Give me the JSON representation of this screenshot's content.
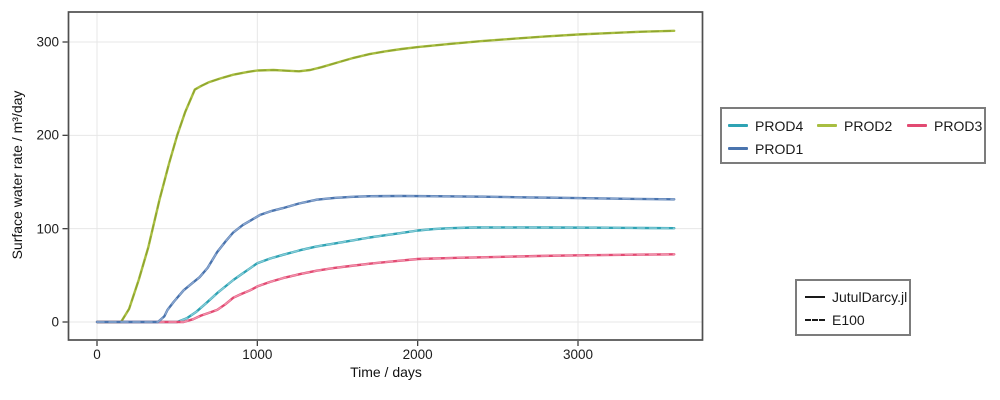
{
  "figure": {
    "background": "#ffffff"
  },
  "chart_data": {
    "type": "line",
    "title": "",
    "xlabel": "Time / days",
    "ylabel": "Surface water rate / m³/day",
    "xlim": [
      -175,
      3780
    ],
    "ylim": [
      -19,
      332
    ],
    "xticks": [
      0,
      1000,
      2000,
      3000
    ],
    "xticklabels": [
      "0",
      "1000",
      "2000",
      "3000"
    ],
    "yticks": [
      0,
      100,
      200,
      300
    ],
    "yticklabels": [
      "0",
      "100",
      "200",
      "300"
    ],
    "grid": true,
    "grid_color": "#e7e7e7",
    "frame_color": "#4f4f4f",
    "legend_series_position": "outside-right-top",
    "legend_linestyle_position": "outside-right-bottom",
    "series": [
      {
        "name": "PROD4",
        "color": "#2EA3B4",
        "dash_color": "#85CBD6",
        "x": [
          0,
          250,
          500,
          560,
          620,
          680,
          750,
          800,
          850,
          900,
          950,
          1000,
          1080,
          1160,
          1270,
          1370,
          1480,
          1580,
          1700,
          1800,
          1900,
          2000,
          2100,
          2200,
          2350,
          2500,
          2800,
          3100,
          3400,
          3600
        ],
        "y": [
          0,
          0,
          0,
          4,
          11,
          20,
          31,
          38,
          45,
          51,
          57,
          63,
          68,
          72,
          77,
          81,
          84,
          87,
          90.5,
          93,
          95.5,
          98,
          99.5,
          100.5,
          101.2,
          101.4,
          101.2,
          101,
          100.7,
          100.5
        ]
      },
      {
        "name": "PROD2",
        "color": "#A8BE41",
        "dash_color": "#8FA52E",
        "x": [
          0,
          100,
          150,
          200,
          260,
          320,
          390,
          450,
          500,
          550,
          610,
          650,
          700,
          770,
          850,
          940,
          1000,
          1100,
          1180,
          1260,
          1330,
          1400,
          1500,
          1600,
          1700,
          1800,
          1900,
          2000,
          2200,
          2400,
          2600,
          2800,
          3000,
          3200,
          3400,
          3600
        ],
        "y": [
          0,
          0,
          0,
          14,
          45,
          80,
          131,
          170,
          200,
          225,
          249,
          253,
          257,
          261,
          265,
          268,
          269.5,
          270,
          269.2,
          268.6,
          270,
          273,
          278,
          283,
          287,
          290,
          292.5,
          294.5,
          298,
          301,
          303.5,
          306,
          308,
          309.5,
          311,
          312
        ]
      },
      {
        "name": "PROD3",
        "color": "#E24A72",
        "dash_color": "#F090AB",
        "x": [
          0,
          250,
          540,
          600,
          650,
          700,
          750,
          800,
          850,
          900,
          955,
          1005,
          1080,
          1160,
          1270,
          1370,
          1480,
          1580,
          1700,
          1850,
          2000,
          2250,
          2500,
          2750,
          3000,
          3300,
          3600
        ],
        "y": [
          0,
          0,
          0,
          3,
          7,
          10,
          13,
          19,
          26,
          30,
          34,
          38.5,
          43,
          47,
          51.5,
          55,
          58,
          60,
          62.5,
          65,
          67.5,
          68.8,
          69.8,
          70.7,
          71.5,
          72,
          72.5
        ]
      },
      {
        "name": "PROD1",
        "color": "#4A74AE",
        "dash_color": "#8AA6CE",
        "x": [
          0,
          200,
          380,
          420,
          440,
          480,
          540,
          590,
          640,
          690,
          750,
          800,
          850,
          910,
          960,
          1020,
          1090,
          1160,
          1260,
          1370,
          1480,
          1580,
          1700,
          1900,
          2100,
          2400,
          2700,
          3000,
          3300,
          3600
        ],
        "y": [
          0,
          0,
          0,
          6,
          13,
          22,
          34,
          41,
          48,
          58,
          75,
          86,
          96,
          104,
          109,
          115,
          119,
          122,
          127,
          131,
          133,
          134,
          134.8,
          135,
          134.8,
          134.3,
          133.5,
          132.8,
          132,
          131.5
        ]
      }
    ],
    "line_styles": [
      {
        "name": "JutulDarcy.jl",
        "style": "solid"
      },
      {
        "name": "E100",
        "style": "dashed"
      }
    ]
  }
}
